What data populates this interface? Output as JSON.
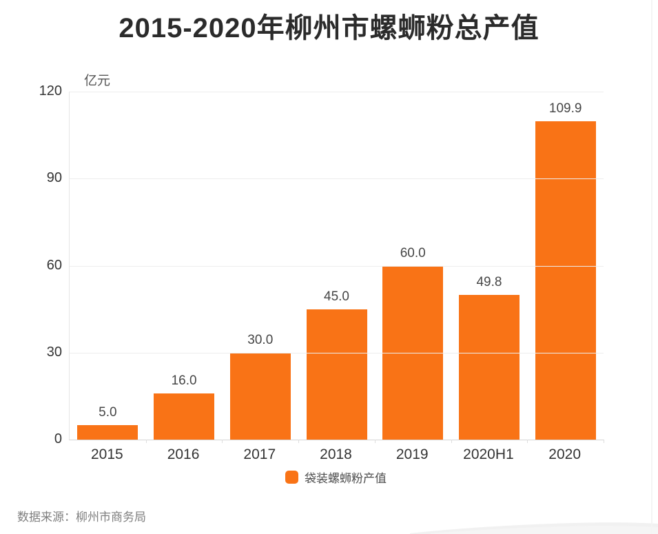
{
  "page": {
    "title": "2015-2020年柳州市螺蛳粉总产值",
    "source_note": "数据来源：柳州市商务局"
  },
  "chart_data": {
    "type": "bar",
    "title": "2015-2020年柳州市螺蛳粉总产值",
    "unit_label": "亿元",
    "categories": [
      "2015",
      "2016",
      "2017",
      "2018",
      "2019",
      "2020H1",
      "2020"
    ],
    "series": [
      {
        "name": "袋装螺蛳粉产值",
        "values": [
          5.0,
          16.0,
          30.0,
          45.0,
          60.0,
          49.8,
          109.9
        ]
      }
    ],
    "value_labels": [
      "5.0",
      "16.0",
      "30.0",
      "45.0",
      "60.0",
      "49.8",
      "109.9"
    ],
    "ylim": [
      0,
      120
    ],
    "y_ticks": [
      0,
      30,
      60,
      90,
      120
    ],
    "grid": true,
    "legend": {
      "position": "bottom",
      "entries": [
        "袋装螺蛳粉产值"
      ]
    },
    "bar_color": "#F97316",
    "source": "数据来源：柳州市商务局"
  },
  "colors": {
    "bar": "#F97316",
    "title_text": "#2b2b2b",
    "axis_text": "#333333",
    "value_text": "#454545",
    "gridline": "#ededed",
    "source_text": "#7f7f7f"
  }
}
